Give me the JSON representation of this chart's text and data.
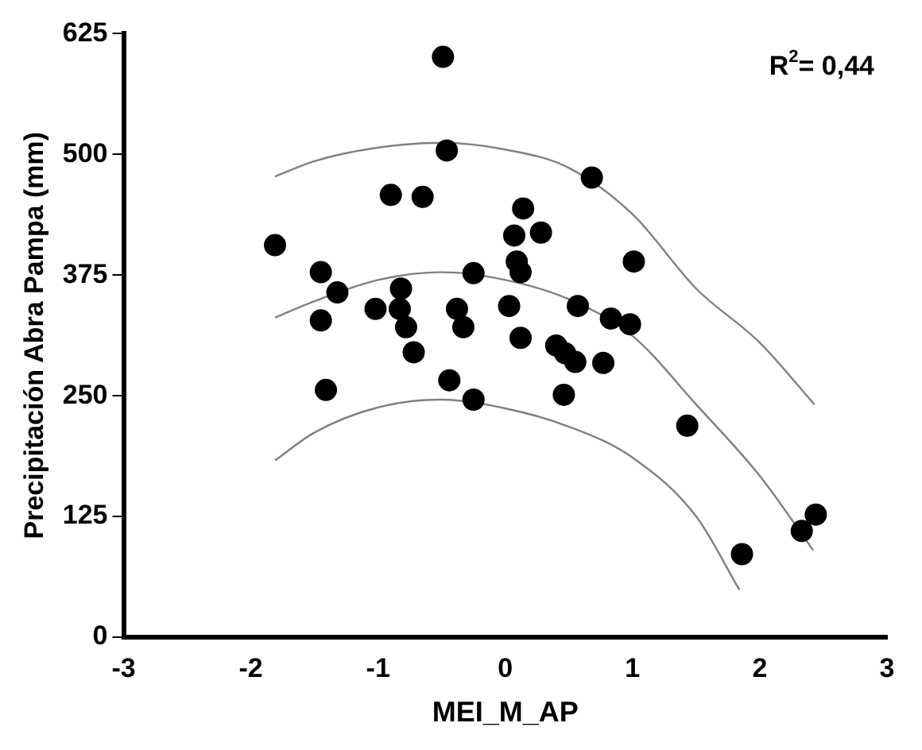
{
  "chart_data": {
    "type": "scatter",
    "xlabel": "MEI_M_AP",
    "ylabel": "Precipitación Abra Pampa (mm)",
    "xlim": [
      -3,
      3
    ],
    "xticks": [
      -3,
      -2,
      -1,
      0,
      1,
      2,
      3
    ],
    "ylim": [
      0,
      625
    ],
    "yticks": [
      0,
      125,
      250,
      375,
      500,
      625
    ],
    "grid": false,
    "legend": false,
    "marker": "circle",
    "annotations": [
      "R$^{2}$= 0,44"
    ],
    "series": [
      {
        "type": "scatter",
        "color": "#000000",
        "x": [
          -1.81,
          -1.45,
          -1.45,
          -1.32,
          -1.41,
          -1.02,
          -0.9,
          -0.65,
          -0.82,
          -0.83,
          -0.78,
          -0.72,
          -0.49,
          -0.46,
          -0.25,
          -0.38,
          -0.33,
          -0.44,
          -0.25,
          0.68,
          0.14,
          0.07,
          0.28,
          0.09,
          0.12,
          1.01,
          0.03,
          0.57,
          0.83,
          0.98,
          0.12,
          0.4,
          0.47,
          0.55,
          0.77,
          0.46,
          1.43,
          2.44,
          2.33,
          1.86
        ],
        "values": [
          406,
          378,
          328,
          357,
          256,
          340,
          458,
          456,
          361,
          340,
          321,
          295,
          601,
          504,
          377,
          340,
          321,
          266,
          246,
          476,
          444,
          416,
          419,
          389,
          378,
          389,
          343,
          343,
          330,
          324,
          310,
          302,
          294,
          285,
          284,
          251,
          219,
          127,
          110,
          86
        ]
      },
      {
        "type": "line",
        "color": "#808080",
        "marker": "none",
        "x": [
          -1.81,
          -1.5,
          -1,
          -0.5,
          0,
          0.5,
          1,
          1.5,
          2,
          2.43
        ],
        "values": [
          477,
          493,
          507,
          512,
          505,
          486,
          438,
          361,
          305,
          241
        ]
      },
      {
        "type": "line",
        "color": "#808080",
        "marker": "none",
        "x": [
          -1.81,
          -1.5,
          -1,
          -0.5,
          0,
          0.5,
          1,
          1.5,
          2,
          2.42
        ],
        "values": [
          331,
          348,
          370,
          378,
          370,
          350,
          312,
          241,
          167,
          90
        ]
      },
      {
        "type": "line",
        "color": "#808080",
        "marker": "none",
        "x": [
          -1.81,
          -1.5,
          -1,
          -0.5,
          0,
          0.5,
          1,
          1.5,
          1.84
        ],
        "values": [
          183,
          212,
          238,
          246,
          237,
          218,
          186,
          125,
          49
        ]
      }
    ]
  }
}
